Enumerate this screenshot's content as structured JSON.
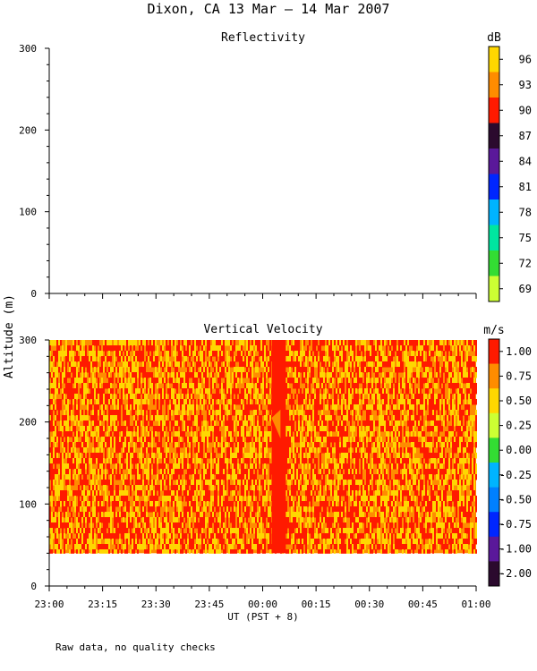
{
  "figure": {
    "title": "Dixon, CA 13 Mar — 14 Mar 2007",
    "ylabel": "Altitude (m)",
    "xlabel": "UT  (PST + 8)",
    "note": "Raw data, no quality checks",
    "x_ticks": [
      "23:00",
      "23:15",
      "23:30",
      "23:45",
      "00:00",
      "00:15",
      "00:30",
      "00:45",
      "01:00"
    ]
  },
  "chart_data": [
    {
      "type": "heatmap",
      "title": "Reflectivity",
      "ylabel": "Altitude (m)",
      "xlabel": "UT  (PST + 8)",
      "x_range": [
        "23:00",
        "01:00"
      ],
      "y_ticks": [
        0,
        100,
        200,
        300
      ],
      "ylim": [
        0,
        300
      ],
      "data_present": false,
      "colorbar": {
        "unit": "dB",
        "ticks": [
          "96",
          "93",
          "90",
          "87",
          "84",
          "81",
          "78",
          "75",
          "72",
          "69"
        ],
        "colors": [
          "#ffd700",
          "#ff8c00",
          "#ff1a00",
          "#2b0a2e",
          "#5a189a",
          "#0026ff",
          "#00b4ff",
          "#00e6a0",
          "#33dd33",
          "#ccff33"
        ]
      }
    },
    {
      "type": "heatmap",
      "title": "Vertical Velocity",
      "ylabel": "Altitude (m)",
      "xlabel": "UT  (PST + 8)",
      "x_range": [
        "23:00",
        "01:00"
      ],
      "y_ticks": [
        0,
        100,
        200,
        300
      ],
      "ylim": [
        0,
        300
      ],
      "data_altitude_range": [
        40,
        300
      ],
      "dominant_range": [
        0.5,
        1.0
      ],
      "colorbar": {
        "unit": "m/s",
        "ticks": [
          "1.00",
          "0.75",
          "0.50",
          "0.25",
          "0.00",
          "-0.25",
          "-0.50",
          "-0.75",
          "-1.00",
          "-2.00"
        ],
        "colors": [
          "#ff1a00",
          "#ff8c00",
          "#ffd700",
          "#ccff33",
          "#33dd33",
          "#00b4ff",
          "#0080ff",
          "#0026ff",
          "#5a189a",
          "#2b0a2e"
        ]
      }
    }
  ]
}
